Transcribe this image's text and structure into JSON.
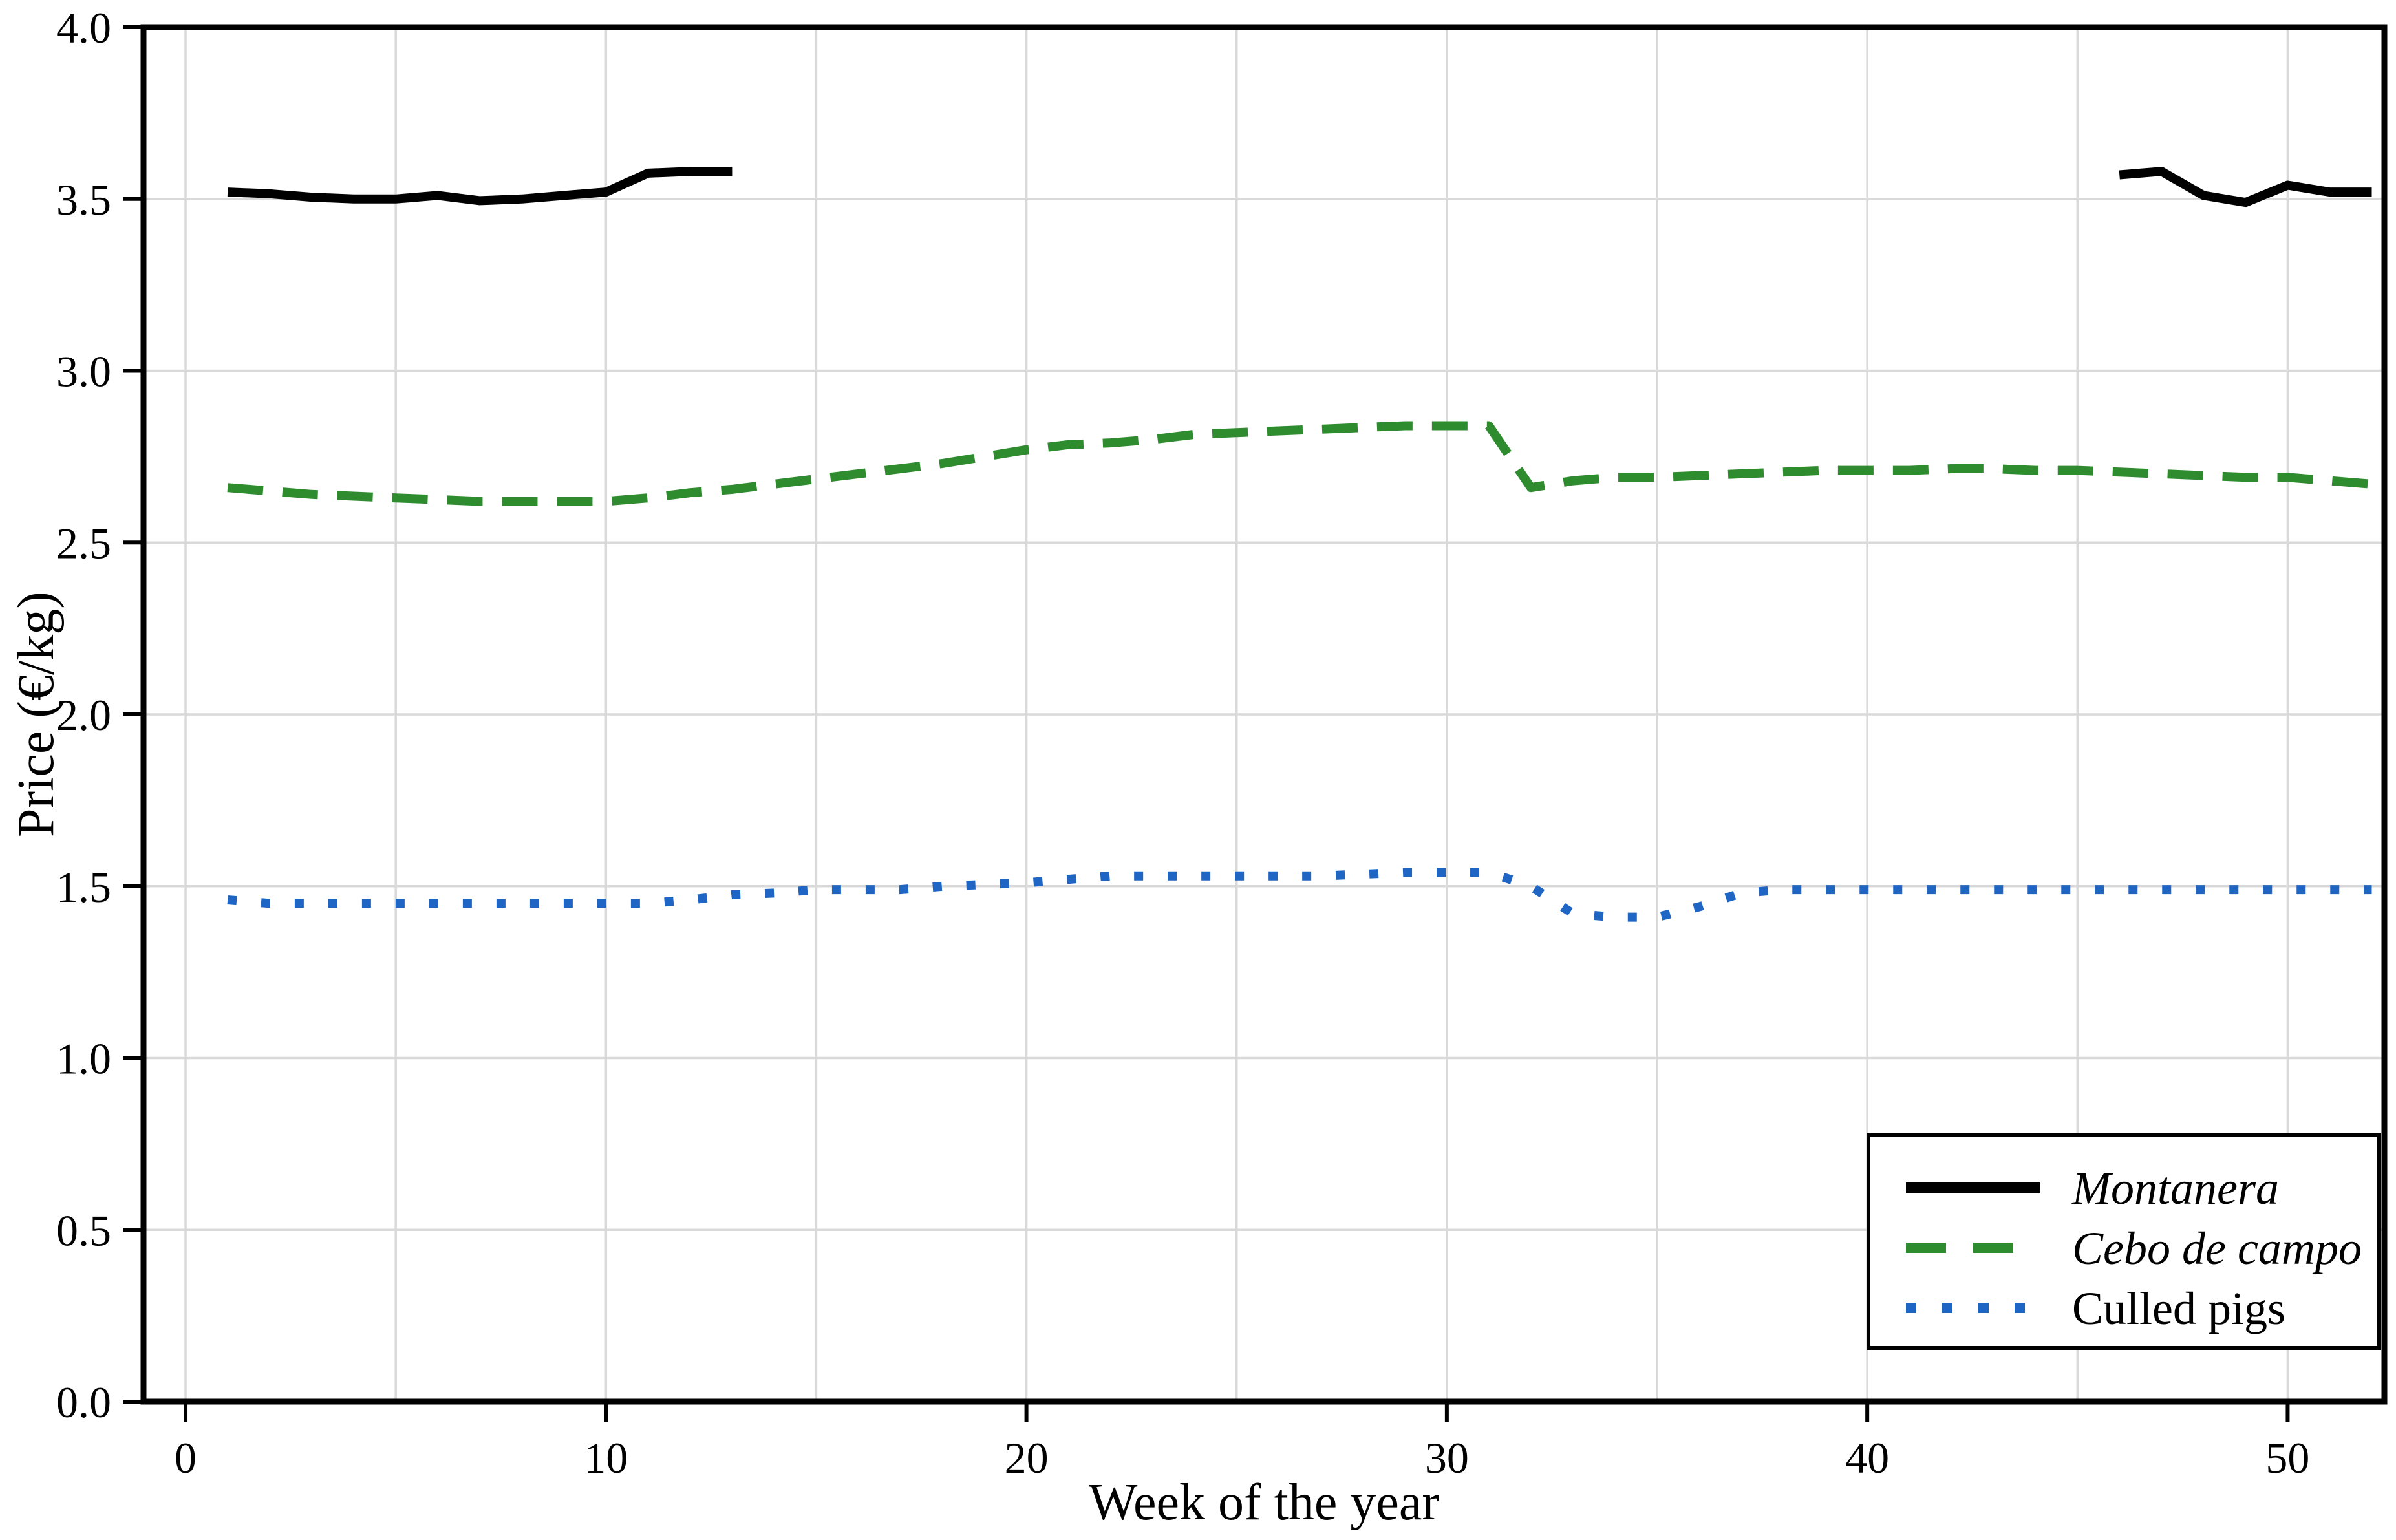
{
  "figure": {
    "background": "#ffffff",
    "spine_color": "#000000",
    "grid_color": "#d9d9d9"
  },
  "chart_data": {
    "type": "line",
    "title": "",
    "xlabel": "Week of the year",
    "ylabel": "Price (€/kg)",
    "xlim": [
      -1,
      52.3
    ],
    "ylim": [
      0,
      4.0
    ],
    "grid": "on",
    "x_major_ticks": [
      0,
      10,
      20,
      30,
      40,
      50
    ],
    "x_tick_labels": [
      "0",
      "10",
      "20",
      "30",
      "40",
      "50"
    ],
    "x_grid_positions": [
      0,
      5,
      10,
      15,
      20,
      25,
      30,
      35,
      40,
      45,
      50
    ],
    "y_ticks": [
      0.0,
      0.5,
      1.0,
      1.5,
      2.0,
      2.5,
      3.0,
      3.5,
      4.0
    ],
    "y_tick_labels": [
      "0.0",
      "0.5",
      "1.0",
      "1.5",
      "2.0",
      "2.5",
      "3.0",
      "3.5",
      "4.0"
    ],
    "y_grid_positions": [
      0.5,
      1.0,
      1.5,
      2.0,
      2.5,
      3.0,
      3.5
    ],
    "legend_position": "lower right",
    "series": [
      {
        "name": "Montanera",
        "color": "#000000",
        "style": "solid",
        "line_width": 14,
        "segments": [
          {
            "weeks": [
              1,
              2,
              3,
              4,
              5,
              6,
              7,
              8,
              9,
              10,
              11,
              12,
              13
            ],
            "values": [
              3.52,
              3.515,
              3.505,
              3.5,
              3.5,
              3.51,
              3.495,
              3.5,
              3.51,
              3.52,
              3.575,
              3.58,
              3.58
            ]
          },
          {
            "weeks": [
              46,
              47,
              48,
              49,
              50,
              51,
              52
            ],
            "values": [
              3.57,
              3.58,
              3.51,
              3.49,
              3.54,
              3.52,
              3.52
            ]
          }
        ]
      },
      {
        "name": "Cebo de campo",
        "color": "#2e8b2e",
        "style": "dashed",
        "line_width": 14,
        "segments": [
          {
            "weeks": [
              1,
              2,
              3,
              4,
              5,
              6,
              7,
              8,
              9,
              10,
              11,
              12,
              13,
              14,
              15,
              16,
              17,
              18,
              19,
              20,
              21,
              22,
              23,
              24,
              25,
              26,
              27,
              28,
              29,
              30,
              31,
              32,
              33,
              34,
              35,
              36,
              37,
              38,
              39,
              40,
              41,
              42,
              43,
              44,
              45,
              46,
              47,
              48,
              49,
              50,
              51,
              52
            ],
            "values": [
              2.66,
              2.65,
              2.64,
              2.635,
              2.63,
              2.625,
              2.62,
              2.62,
              2.62,
              2.62,
              2.63,
              2.645,
              2.655,
              2.67,
              2.685,
              2.7,
              2.715,
              2.73,
              2.75,
              2.77,
              2.785,
              2.79,
              2.8,
              2.815,
              2.82,
              2.825,
              2.83,
              2.835,
              2.84,
              2.84,
              2.84,
              2.66,
              2.68,
              2.69,
              2.69,
              2.695,
              2.7,
              2.705,
              2.71,
              2.71,
              2.71,
              2.715,
              2.715,
              2.71,
              2.71,
              2.705,
              2.7,
              2.695,
              2.69,
              2.69,
              2.68,
              2.67
            ]
          }
        ]
      },
      {
        "name": "Culled pigs",
        "color": "#1f65c4",
        "style": "dotted",
        "line_width": 14,
        "segments": [
          {
            "weeks": [
              1,
              2,
              3,
              4,
              5,
              6,
              7,
              8,
              9,
              10,
              11,
              12,
              13,
              14,
              15,
              16,
              17,
              18,
              19,
              20,
              21,
              22,
              23,
              24,
              25,
              26,
              27,
              28,
              29,
              30,
              31,
              32,
              33,
              34,
              35,
              36,
              37,
              38,
              39,
              40,
              41,
              42,
              43,
              44,
              45,
              46,
              47,
              48,
              49,
              50,
              51,
              52
            ],
            "values": [
              1.46,
              1.45,
              1.45,
              1.45,
              1.45,
              1.45,
              1.45,
              1.45,
              1.45,
              1.45,
              1.45,
              1.46,
              1.475,
              1.48,
              1.49,
              1.49,
              1.49,
              1.5,
              1.505,
              1.51,
              1.52,
              1.53,
              1.53,
              1.53,
              1.53,
              1.53,
              1.53,
              1.535,
              1.54,
              1.54,
              1.54,
              1.5,
              1.42,
              1.41,
              1.41,
              1.44,
              1.48,
              1.49,
              1.49,
              1.49,
              1.49,
              1.49,
              1.49,
              1.49,
              1.49,
              1.49,
              1.49,
              1.49,
              1.49,
              1.49,
              1.49,
              1.49
            ]
          }
        ]
      }
    ]
  },
  "legend": {
    "entries": [
      {
        "label": "Montanera",
        "italic": true
      },
      {
        "label": "Cebo de campo",
        "italic": true
      },
      {
        "label": "Culled pigs",
        "italic": false
      }
    ]
  }
}
